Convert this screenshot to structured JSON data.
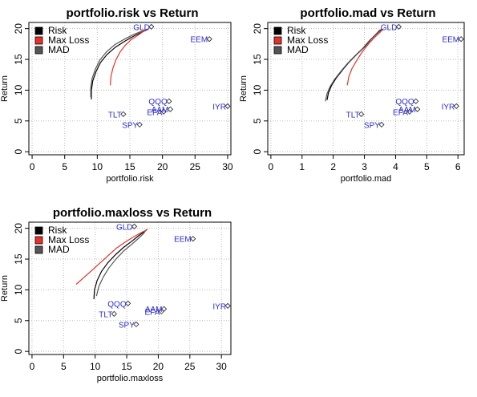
{
  "colors": {
    "Risk": "#000000",
    "Max Loss": "#e8302a",
    "MAD": "#555555",
    "asset_label": "#2a2ad0",
    "asset_point": "#333333",
    "grid": "#bbbbbb"
  },
  "chart_data": [
    {
      "type": "scatter",
      "title": "portfolio.risk vs Return",
      "xlabel": "portfolio.risk",
      "ylabel": "Return",
      "xlim": [
        -0.5,
        30.5
      ],
      "ylim": [
        -0.5,
        21
      ],
      "xticks": [
        0,
        5,
        10,
        15,
        20,
        25,
        30
      ],
      "yticks": [
        0,
        5,
        10,
        15,
        20
      ],
      "grid": true,
      "legend": {
        "placement": "top-left",
        "entries": [
          "Risk",
          "Max Loss",
          "MAD"
        ]
      },
      "points": [
        {
          "label": "GLD",
          "x": 18.3,
          "y": 20.3
        },
        {
          "label": "EEM",
          "x": 27.2,
          "y": 18.3
        },
        {
          "label": "QQQ",
          "x": 21.0,
          "y": 8.2
        },
        {
          "label": "EFA",
          "x": 20.2,
          "y": 6.5
        },
        {
          "label": "AAM",
          "x": 21.2,
          "y": 6.9
        },
        {
          "label": "IYR",
          "x": 30.0,
          "y": 7.4
        },
        {
          "label": "TLT",
          "x": 14.0,
          "y": 6.1
        },
        {
          "label": "SPY",
          "x": 16.5,
          "y": 4.4
        }
      ],
      "series": [
        {
          "name": "Risk",
          "x": [
            9.1,
            9.1,
            9.3,
            9.8,
            10.5,
            11.5,
            12.8,
            14.3,
            15.8,
            17.0,
            17.8
          ],
          "y": [
            8.5,
            10.0,
            11.5,
            13.0,
            14.5,
            15.8,
            17.0,
            18.0,
            18.9,
            19.5,
            19.9
          ]
        },
        {
          "name": "MAD",
          "x": [
            9.0,
            9.0,
            9.2,
            9.7,
            10.4,
            11.4,
            12.7,
            14.2,
            15.7,
            16.9,
            17.7
          ],
          "y": [
            8.9,
            10.4,
            11.9,
            13.4,
            14.9,
            16.2,
            17.4,
            18.3,
            19.1,
            19.6,
            19.9
          ]
        },
        {
          "name": "Max Loss",
          "x": [
            12.0,
            12.1,
            12.4,
            12.9,
            13.5,
            14.3,
            15.2,
            16.2,
            17.0,
            17.6
          ],
          "y": [
            10.8,
            12.2,
            13.6,
            15.0,
            16.2,
            17.3,
            18.2,
            18.9,
            19.5,
            19.9
          ]
        }
      ]
    },
    {
      "type": "scatter",
      "title": "portfolio.mad vs Return",
      "xlabel": "portfolio.mad",
      "ylabel": "Return",
      "xlim": [
        -0.1,
        6.2
      ],
      "ylim": [
        -0.5,
        21
      ],
      "xticks": [
        0,
        1,
        2,
        3,
        4,
        5,
        6
      ],
      "yticks": [
        0,
        5,
        10,
        15,
        20
      ],
      "grid": true,
      "legend": {
        "placement": "top-left",
        "entries": [
          "Risk",
          "Max Loss",
          "MAD"
        ]
      },
      "points": [
        {
          "label": "GLD",
          "x": 4.1,
          "y": 20.3
        },
        {
          "label": "EEM",
          "x": 6.1,
          "y": 18.3
        },
        {
          "label": "QQQ",
          "x": 4.65,
          "y": 8.2
        },
        {
          "label": "EFA",
          "x": 4.45,
          "y": 6.5
        },
        {
          "label": "AAM",
          "x": 4.7,
          "y": 6.9
        },
        {
          "label": "IYR",
          "x": 5.95,
          "y": 7.4
        },
        {
          "label": "TLT",
          "x": 2.9,
          "y": 6.1
        },
        {
          "label": "SPY",
          "x": 3.55,
          "y": 4.4
        }
      ],
      "series": [
        {
          "name": "Risk",
          "x": [
            1.8,
            1.85,
            1.95,
            2.1,
            2.3,
            2.5,
            2.75,
            3.0,
            3.2,
            3.4,
            3.55
          ],
          "y": [
            8.4,
            9.6,
            10.8,
            12.0,
            13.3,
            14.5,
            15.8,
            17.0,
            18.2,
            19.2,
            19.9
          ]
        },
        {
          "name": "MAD",
          "x": [
            1.75,
            1.8,
            1.9,
            2.05,
            2.25,
            2.45,
            2.7,
            2.95,
            3.15,
            3.35,
            3.5
          ],
          "y": [
            8.2,
            9.4,
            10.6,
            11.8,
            13.1,
            14.3,
            15.6,
            16.8,
            18.0,
            19.0,
            19.8
          ]
        },
        {
          "name": "Max Loss",
          "x": [
            2.45,
            2.5,
            2.6,
            2.75,
            2.9,
            3.05,
            3.2,
            3.35,
            3.5,
            3.6
          ],
          "y": [
            10.8,
            12.2,
            13.5,
            14.8,
            16.0,
            17.0,
            17.9,
            18.7,
            19.4,
            19.9
          ]
        }
      ]
    },
    {
      "type": "scatter",
      "title": "portfolio.maxloss vs Return",
      "xlabel": "portfolio.maxloss",
      "ylabel": "Return",
      "xlim": [
        -0.5,
        31.5
      ],
      "ylim": [
        -0.5,
        21
      ],
      "xticks": [
        0,
        5,
        10,
        15,
        20,
        25,
        30
      ],
      "yticks": [
        0,
        5,
        10,
        15,
        20
      ],
      "grid": true,
      "legend": {
        "placement": "top-left",
        "entries": [
          "Risk",
          "Max Loss",
          "MAD"
        ]
      },
      "points": [
        {
          "label": "GLD",
          "x": 16.2,
          "y": 20.3
        },
        {
          "label": "EEM",
          "x": 25.5,
          "y": 18.3
        },
        {
          "label": "QQQ",
          "x": 15.2,
          "y": 7.8
        },
        {
          "label": "EFA",
          "x": 20.5,
          "y": 6.5
        },
        {
          "label": "AAM",
          "x": 20.9,
          "y": 6.9
        },
        {
          "label": "IYR",
          "x": 31.0,
          "y": 7.4
        },
        {
          "label": "TLT",
          "x": 13.0,
          "y": 6.1
        },
        {
          "label": "SPY",
          "x": 16.5,
          "y": 4.4
        }
      ],
      "series": [
        {
          "name": "Risk",
          "x": [
            9.8,
            9.9,
            10.3,
            11.0,
            12.0,
            13.2,
            14.5,
            15.8,
            16.9,
            17.7,
            18.2
          ],
          "y": [
            8.5,
            10.0,
            11.5,
            13.0,
            14.4,
            15.7,
            16.9,
            17.9,
            18.8,
            19.4,
            19.8
          ]
        },
        {
          "name": "MAD",
          "x": [
            10.2,
            10.6,
            11.3,
            12.2,
            13.3,
            14.5,
            15.8,
            16.9,
            17.7,
            18.1
          ],
          "y": [
            9.0,
            10.6,
            12.1,
            13.6,
            15.0,
            16.3,
            17.4,
            18.4,
            19.2,
            19.8
          ]
        },
        {
          "name": "Max Loss",
          "x": [
            7.0,
            8.2,
            9.5,
            10.8,
            12.1,
            13.4,
            14.8,
            16.1,
            17.3,
            18.3
          ],
          "y": [
            10.9,
            12.0,
            13.2,
            14.4,
            15.6,
            16.8,
            17.8,
            18.6,
            19.3,
            19.8
          ]
        }
      ]
    }
  ]
}
